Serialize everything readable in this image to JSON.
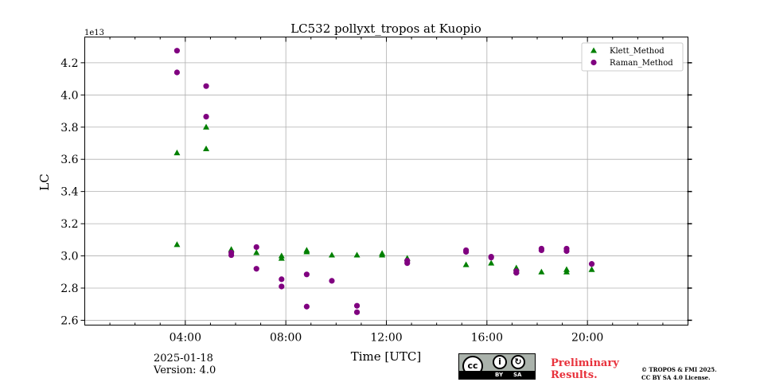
{
  "chart_data": {
    "type": "scatter",
    "title": "LC532 pollyxt_tropos at Kuopio",
    "xlabel": "Time [UTC]",
    "ylabel": "LC",
    "y_multiplier_label": "1e13",
    "xlim": [
      0,
      24
    ],
    "ylim": [
      2.57,
      4.36
    ],
    "x_ticks": [
      4,
      8,
      12,
      16,
      20
    ],
    "x_tick_labels": [
      "04:00",
      "08:00",
      "12:00",
      "16:00",
      "20:00"
    ],
    "y_ticks": [
      2.6,
      2.8,
      3.0,
      3.2,
      3.4,
      3.6,
      3.8,
      4.0,
      4.2
    ],
    "y_tick_labels": [
      "2.6",
      "2.8",
      "3.0",
      "3.2",
      "3.4",
      "3.6",
      "3.8",
      "4.0",
      "4.2"
    ],
    "grid": true,
    "legend_position": "top-right",
    "series": [
      {
        "name": "Klett_Method",
        "marker": "triangle",
        "color": "#008000",
        "x": [
          3.67,
          3.67,
          4.83,
          4.83,
          5.83,
          6.83,
          7.83,
          7.83,
          8.83,
          8.83,
          9.83,
          10.83,
          11.83,
          11.83,
          12.83,
          15.17,
          16.17,
          17.17,
          17.17,
          18.17,
          19.17,
          19.17,
          20.17
        ],
        "y": [
          3.07,
          3.64,
          3.8,
          3.665,
          3.04,
          3.02,
          3.0,
          2.985,
          3.035,
          3.025,
          3.005,
          3.005,
          3.015,
          3.005,
          2.985,
          2.945,
          2.955,
          2.925,
          2.905,
          2.9,
          2.915,
          2.9,
          2.915
        ]
      },
      {
        "name": "Raman_Method",
        "marker": "circle",
        "color": "#800080",
        "x": [
          3.67,
          3.67,
          4.83,
          4.83,
          5.83,
          5.83,
          6.83,
          6.83,
          7.83,
          7.83,
          8.83,
          8.83,
          9.83,
          10.83,
          10.83,
          12.83,
          12.83,
          15.17,
          15.17,
          16.17,
          16.17,
          17.17,
          17.17,
          18.17,
          18.17,
          19.17,
          19.17,
          20.17
        ],
        "y": [
          4.275,
          4.14,
          4.055,
          3.865,
          3.02,
          3.005,
          3.055,
          2.92,
          2.855,
          2.81,
          2.885,
          2.685,
          2.845,
          2.69,
          2.65,
          2.97,
          2.955,
          3.035,
          3.025,
          2.995,
          2.99,
          2.905,
          2.895,
          3.045,
          3.035,
          3.045,
          3.03,
          2.95
        ]
      }
    ]
  },
  "footer": {
    "date": "2025-01-18",
    "version": "Version: 4.0",
    "license_badge": {
      "by": "BY",
      "sa": "SA"
    },
    "preliminary_line1": "Preliminary",
    "preliminary_line2": "Results.",
    "copyright_line1": "© TROPOS & FMI 2025.",
    "copyright_line2": "CC BY SA 4.0 License."
  }
}
